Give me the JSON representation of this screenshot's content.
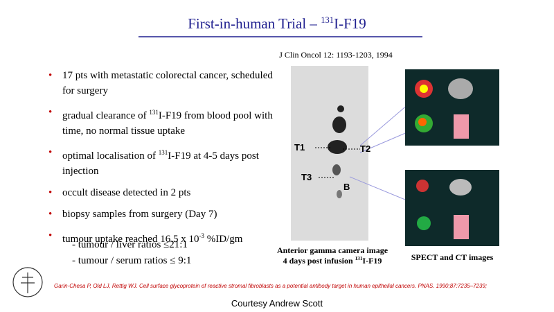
{
  "header": {
    "title": [
      "First-in-human Trial – ",
      "131",
      "I-F19"
    ],
    "citation": "J Clin Oncol 12: 1193-1203, 1994"
  },
  "bullets": [
    [
      "17 pts with metastatic colorectal cancer, scheduled for surgery"
    ],
    [
      "gradual clearance of ",
      "131",
      "I-F19 from blood pool with time, no normal tissue uptake"
    ],
    [
      "optimal localisation of ",
      "131",
      "I-F19 at 4-5 days post injection"
    ],
    [
      "occult disease detected in 2 pts"
    ],
    [
      "biopsy samples from surgery (Day 7)"
    ],
    [
      "tumour uptake reached 16.5 x 10",
      "-3",
      " %ID/gm"
    ]
  ],
  "sub_bullets": [
    "- tumour / liver ratios ≤21:1",
    "- tumour / serum ratios ≤ 9:1"
  ],
  "figure": {
    "labels": [
      "T1",
      "T2",
      "T3",
      "B"
    ],
    "caption": [
      "Anterior gamma camera image",
      "4 days post infusion ",
      "131",
      "I-F19"
    ],
    "spect_caption": "SPECT and CT images"
  },
  "reference": "Garin-Chesa  P, Old LJ, Rettig WJ. Cell surface  glycoprotein of reactive stromal fibroblasts  as a potential antibody target in human epithelial cancers.  PNAS. 1990;87:7235–7239;",
  "footer": "Courtesy Andrew Scott"
}
